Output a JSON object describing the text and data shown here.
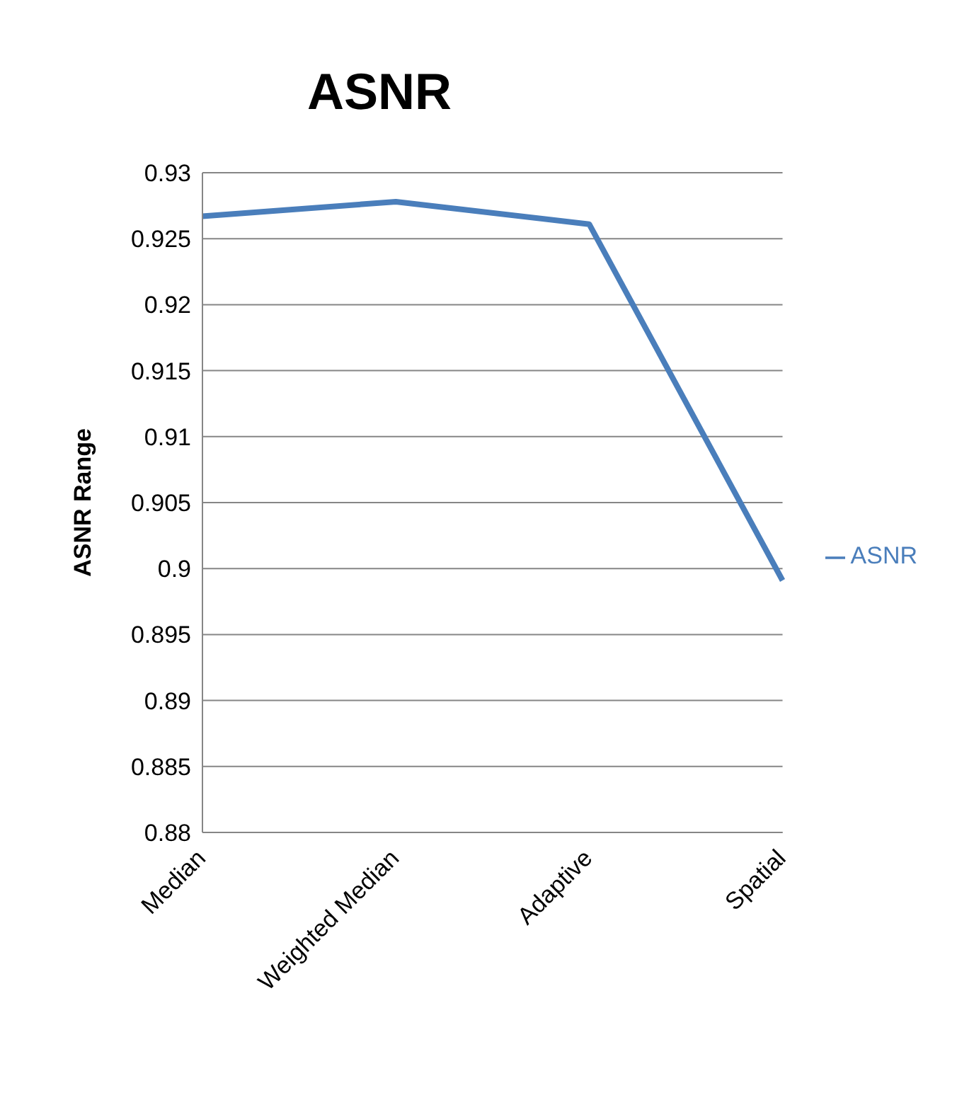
{
  "chart_data": {
    "type": "line",
    "title": "ASNR",
    "ylabel": "ASNR Range",
    "categories": [
      "Median",
      "Weighted Median",
      "Adaptive",
      "Spatial"
    ],
    "series": [
      {
        "name": "ASNR",
        "color": "#4a7ebb",
        "values": [
          0.9267,
          0.9278,
          0.9261,
          0.8991
        ]
      }
    ],
    "ylim": [
      0.88,
      0.93
    ],
    "yticks": [
      0.88,
      0.885,
      0.89,
      0.895,
      0.9,
      0.905,
      0.91,
      0.915,
      0.92,
      0.925,
      0.93
    ],
    "grid": "y",
    "legend": "right",
    "marker": "none",
    "line_style": "solid"
  }
}
